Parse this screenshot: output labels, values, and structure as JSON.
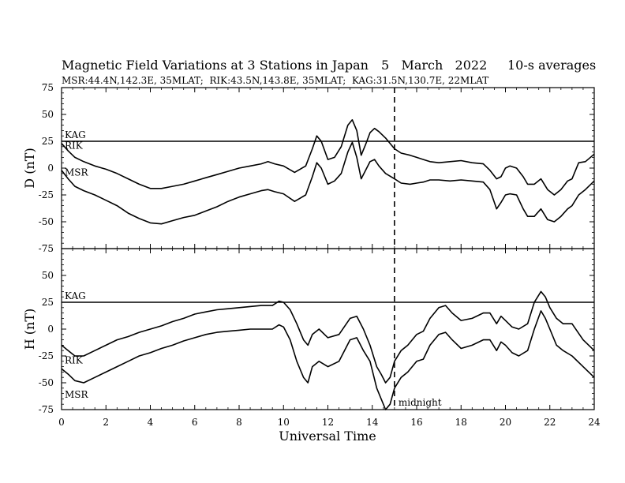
{
  "header": {
    "title": "Magnetic Field Variations at 3 Stations in Japan",
    "date": "5   March   2022",
    "averaging": "10-s averages",
    "stations_line": "MSR:44.4N,142.3E, 35MLAT;  RIK:43.5N,143.8E, 35MLAT;  KAG:31.5N,130.7E, 22MLAT"
  },
  "chart_data": [
    {
      "type": "line",
      "panel": "D",
      "ylabel": "D (nT)",
      "ylim": [
        -75,
        75
      ],
      "yticks": [
        75,
        50,
        25,
        0,
        -25,
        -50,
        -75
      ],
      "xlim": [
        0,
        24
      ],
      "xticks": [
        0,
        2,
        4,
        6,
        8,
        10,
        12,
        14,
        16,
        18,
        20,
        22,
        24
      ],
      "series": [
        {
          "name": "KAG",
          "x": [
            0,
            24
          ],
          "y": [
            25,
            25
          ]
        },
        {
          "name": "RIK",
          "x": [
            0,
            0.3,
            0.6,
            1.0,
            1.5,
            2.0,
            2.5,
            3.0,
            3.5,
            4.0,
            4.5,
            5.0,
            5.5,
            6.0,
            6.5,
            7.0,
            7.5,
            8.0,
            8.5,
            9.0,
            9.3,
            9.6,
            10.0,
            10.5,
            11.0,
            11.3,
            11.5,
            11.7,
            12.0,
            12.3,
            12.6,
            12.9,
            13.1,
            13.3,
            13.5,
            13.7,
            13.9,
            14.1,
            14.3,
            14.6,
            15.0,
            15.3,
            15.7,
            16.0,
            16.3,
            16.6,
            17.0,
            17.5,
            18.0,
            18.5,
            19.0,
            19.3,
            19.6,
            19.8,
            20.0,
            20.2,
            20.5,
            20.8,
            21.0,
            21.3,
            21.6,
            21.9,
            22.2,
            22.5,
            22.8,
            23.0,
            23.3,
            23.6,
            24.0
          ],
          "y": [
            23,
            16,
            10,
            6,
            2,
            -1,
            -5,
            -10,
            -15,
            -19,
            -19,
            -17,
            -15,
            -12,
            -9,
            -6,
            -3,
            0,
            2,
            4,
            6,
            4,
            2,
            -4,
            2,
            18,
            30,
            25,
            8,
            10,
            20,
            40,
            45,
            35,
            12,
            22,
            33,
            37,
            34,
            28,
            18,
            14,
            12,
            10,
            8,
            6,
            5,
            6,
            7,
            5,
            4,
            -2,
            -10,
            -8,
            0,
            2,
            0,
            -8,
            -15,
            -15,
            -10,
            -20,
            -25,
            -20,
            -12,
            -10,
            5,
            6,
            13
          ]
        },
        {
          "name": "MSR",
          "x": [
            0,
            0.3,
            0.6,
            1.0,
            1.5,
            2.0,
            2.5,
            3.0,
            3.5,
            4.0,
            4.5,
            5.0,
            5.5,
            6.0,
            6.5,
            7.0,
            7.5,
            8.0,
            8.5,
            9.0,
            9.3,
            9.6,
            10.0,
            10.5,
            11.0,
            11.3,
            11.5,
            11.7,
            12.0,
            12.3,
            12.6,
            12.9,
            13.1,
            13.3,
            13.5,
            13.7,
            13.9,
            14.1,
            14.3,
            14.6,
            15.0,
            15.3,
            15.7,
            16.0,
            16.3,
            16.6,
            17.0,
            17.5,
            18.0,
            18.5,
            19.0,
            19.3,
            19.6,
            19.8,
            20.0,
            20.2,
            20.5,
            20.8,
            21.0,
            21.3,
            21.6,
            21.9,
            22.2,
            22.5,
            22.8,
            23.0,
            23.3,
            23.6,
            24.0
          ],
          "y": [
            -2,
            -10,
            -17,
            -21,
            -25,
            -30,
            -35,
            -42,
            -47,
            -51,
            -52,
            -49,
            -46,
            -44,
            -40,
            -36,
            -31,
            -27,
            -24,
            -21,
            -20,
            -22,
            -24,
            -31,
            -25,
            -8,
            5,
            0,
            -15,
            -12,
            -5,
            15,
            24,
            10,
            -10,
            -2,
            6,
            8,
            2,
            -5,
            -10,
            -14,
            -15,
            -14,
            -13,
            -11,
            -11,
            -12,
            -11,
            -12,
            -13,
            -20,
            -38,
            -32,
            -25,
            -24,
            -25,
            -38,
            -45,
            -45,
            -38,
            -48,
            -50,
            -45,
            -38,
            -35,
            -25,
            -20,
            -12
          ]
        }
      ],
      "annotations": [
        "KAG",
        "RIK",
        "MSR"
      ]
    },
    {
      "type": "line",
      "panel": "H",
      "ylabel": "H (nT)",
      "xlabel": "Universal Time",
      "ylim": [
        -75,
        75
      ],
      "yticks": [
        50,
        25,
        0,
        -25,
        -50,
        -75
      ],
      "xlim": [
        0,
        24
      ],
      "xticks": [
        0,
        2,
        4,
        6,
        8,
        10,
        12,
        14,
        16,
        18,
        20,
        22,
        24
      ],
      "series": [
        {
          "name": "KAG",
          "x": [
            0,
            24
          ],
          "y": [
            25,
            25
          ]
        },
        {
          "name": "RIK",
          "x": [
            0,
            0.3,
            0.6,
            1.0,
            1.5,
            2.0,
            2.5,
            3.0,
            3.5,
            4.0,
            4.5,
            5.0,
            5.5,
            6.0,
            6.5,
            7.0,
            7.5,
            8.0,
            8.5,
            9.0,
            9.5,
            9.8,
            10.0,
            10.3,
            10.6,
            10.9,
            11.1,
            11.3,
            11.6,
            12.0,
            12.5,
            13.0,
            13.3,
            13.6,
            13.9,
            14.2,
            14.4,
            14.6,
            14.8,
            15.0,
            15.3,
            15.6,
            16.0,
            16.3,
            16.6,
            17.0,
            17.3,
            17.6,
            18.0,
            18.5,
            19.0,
            19.3,
            19.6,
            19.8,
            20.0,
            20.3,
            20.6,
            21.0,
            21.3,
            21.6,
            21.8,
            22.0,
            22.3,
            22.6,
            23.0,
            23.5,
            24.0
          ],
          "y": [
            -15,
            -20,
            -25,
            -25,
            -20,
            -15,
            -10,
            -7,
            -3,
            0,
            3,
            7,
            10,
            14,
            16,
            18,
            19,
            20,
            21,
            22,
            22,
            26,
            25,
            18,
            5,
            -10,
            -15,
            -5,
            0,
            -8,
            -5,
            10,
            12,
            0,
            -15,
            -35,
            -42,
            -50,
            -45,
            -30,
            -20,
            -15,
            -5,
            -2,
            10,
            20,
            22,
            15,
            8,
            10,
            15,
            15,
            5,
            12,
            8,
            2,
            0,
            5,
            25,
            35,
            30,
            20,
            10,
            5,
            5,
            -10,
            -20
          ]
        },
        {
          "name": "MSR",
          "x": [
            0,
            0.3,
            0.6,
            1.0,
            1.5,
            2.0,
            2.5,
            3.0,
            3.5,
            4.0,
            4.5,
            5.0,
            5.5,
            6.0,
            6.5,
            7.0,
            7.5,
            8.0,
            8.5,
            9.0,
            9.5,
            9.8,
            10.0,
            10.3,
            10.6,
            10.9,
            11.1,
            11.3,
            11.6,
            12.0,
            12.5,
            13.0,
            13.3,
            13.6,
            13.9,
            14.2,
            14.4,
            14.6,
            14.8,
            15.0,
            15.3,
            15.6,
            16.0,
            16.3,
            16.6,
            17.0,
            17.3,
            17.6,
            18.0,
            18.5,
            19.0,
            19.3,
            19.6,
            19.8,
            20.0,
            20.3,
            20.6,
            21.0,
            21.3,
            21.6,
            21.8,
            22.0,
            22.3,
            22.6,
            23.0,
            23.5,
            24.0
          ],
          "y": [
            -37,
            -42,
            -48,
            -50,
            -45,
            -40,
            -35,
            -30,
            -25,
            -22,
            -18,
            -15,
            -11,
            -8,
            -5,
            -3,
            -2,
            -1,
            0,
            0,
            0,
            4,
            2,
            -10,
            -30,
            -45,
            -50,
            -35,
            -30,
            -35,
            -30,
            -10,
            -8,
            -20,
            -30,
            -55,
            -65,
            -75,
            -70,
            -55,
            -45,
            -40,
            -30,
            -28,
            -15,
            -5,
            -3,
            -10,
            -18,
            -15,
            -10,
            -10,
            -20,
            -12,
            -15,
            -22,
            -25,
            -20,
            0,
            17,
            10,
            0,
            -15,
            -20,
            -25,
            -35,
            -45
          ]
        }
      ],
      "annotations": [
        "KAG",
        "RIK",
        "MSR",
        "midnight"
      ]
    }
  ],
  "marker": {
    "x": 15,
    "label": "midnight"
  },
  "colors": {
    "line": "#000000",
    "background": "#ffffff"
  }
}
